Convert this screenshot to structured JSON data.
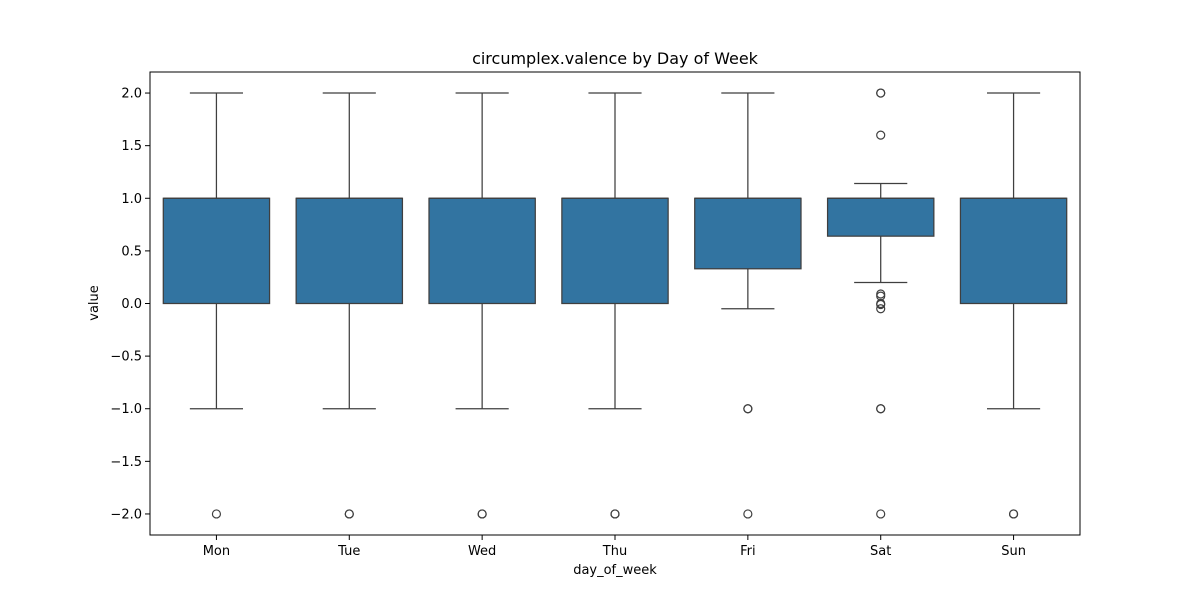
{
  "chart_data": {
    "type": "box",
    "title": "circumplex.valence by Day of Week",
    "xlabel": "day_of_week",
    "ylabel": "value",
    "ylim": [
      -2.2,
      2.2
    ],
    "yticks": [
      2.0,
      1.5,
      1.0,
      0.5,
      0.0,
      -0.5,
      -1.0,
      -1.5,
      -2.0
    ],
    "ytick_labels": [
      "2.0",
      "1.5",
      "1.0",
      "0.5",
      "0.0",
      "−0.5",
      "−1.0",
      "−1.5",
      "−2.0"
    ],
    "categories": [
      "Mon",
      "Tue",
      "Wed",
      "Thu",
      "Fri",
      "Sat",
      "Sun"
    ],
    "box_color": "#3274a1",
    "edge_color": "#3f3f3f",
    "boxes": [
      {
        "category": "Mon",
        "q1": 0.0,
        "median": 1.0,
        "q3": 1.0,
        "whisker_low": -1.0,
        "whisker_high": 2.0,
        "outliers": [
          -2.0
        ]
      },
      {
        "category": "Tue",
        "q1": 0.0,
        "median": 1.0,
        "q3": 1.0,
        "whisker_low": -1.0,
        "whisker_high": 2.0,
        "outliers": [
          -2.0,
          -2.0
        ]
      },
      {
        "category": "Wed",
        "q1": 0.0,
        "median": 1.0,
        "q3": 1.0,
        "whisker_low": -1.0,
        "whisker_high": 2.0,
        "outliers": [
          -2.0,
          -2.0
        ]
      },
      {
        "category": "Thu",
        "q1": 0.0,
        "median": 1.0,
        "q3": 1.0,
        "whisker_low": -1.0,
        "whisker_high": 2.0,
        "outliers": [
          -2.0,
          -2.0
        ]
      },
      {
        "category": "Fri",
        "q1": 0.33,
        "median": 1.0,
        "q3": 1.0,
        "whisker_low": -0.05,
        "whisker_high": 2.0,
        "outliers": [
          -1.0,
          -1.0,
          -2.0
        ]
      },
      {
        "category": "Sat",
        "q1": 0.64,
        "median": 1.0,
        "q3": 1.0,
        "whisker_low": 0.2,
        "whisker_high": 1.14,
        "outliers": [
          2.0,
          2.0,
          1.6,
          0.09,
          0.07,
          0.0,
          -0.01,
          -0.05,
          -1.0,
          -1.0,
          -2.0
        ]
      },
      {
        "category": "Sun",
        "q1": 0.0,
        "median": 1.0,
        "q3": 1.0,
        "whisker_low": -1.0,
        "whisker_high": 2.0,
        "outliers": [
          -2.0,
          -2.0
        ]
      }
    ]
  }
}
